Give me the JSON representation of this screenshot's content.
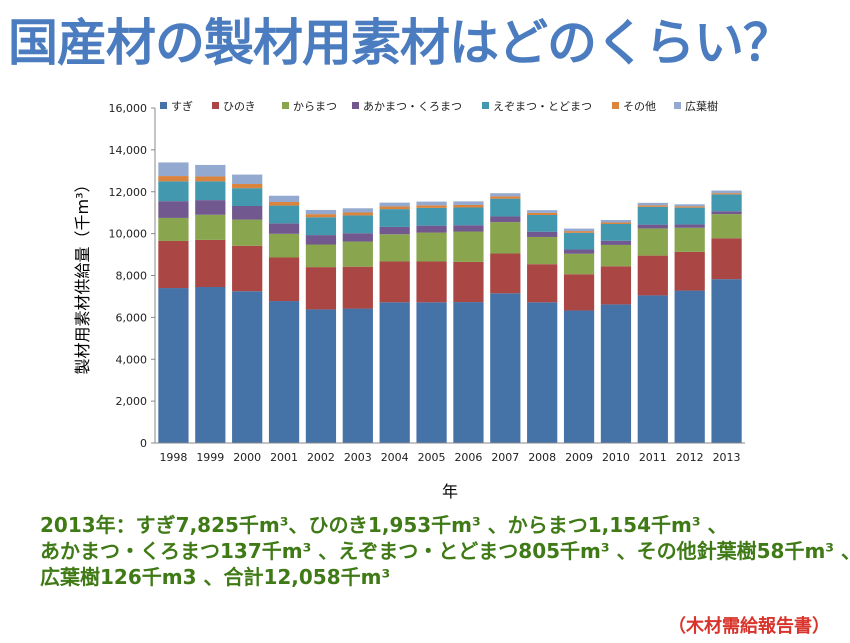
{
  "title": "国産材の製材用素材はどのくらい？",
  "colors": {
    "title": "#4a7cbf",
    "summary": "#3f7a16",
    "source": "#d9342b"
  },
  "chart_data": {
    "type": "bar",
    "stacked": true,
    "categories": [
      "1998",
      "1999",
      "2000",
      "2001",
      "2002",
      "2003",
      "2004",
      "2005",
      "2006",
      "2007",
      "2008",
      "2009",
      "2010",
      "2011",
      "2012",
      "2013"
    ],
    "ylabel": "製材用素材供給量（千m³）",
    "xlabel": "年",
    "ylim": [
      0,
      16000
    ],
    "yticks": [
      "0",
      "2,000",
      "4,000",
      "6,000",
      "8,000",
      "10,000",
      "12,000",
      "14,000",
      "16,000"
    ],
    "legend_position": "top",
    "series": [
      {
        "name": "すぎ",
        "color": "#4572a7",
        "values": [
          7400,
          7450,
          7250,
          6780,
          6380,
          6420,
          6720,
          6720,
          6730,
          7150,
          6720,
          6330,
          6620,
          7050,
          7280,
          7825
        ]
      },
      {
        "name": "ひのき",
        "color": "#aa4643",
        "values": [
          2250,
          2250,
          2170,
          2080,
          2020,
          2000,
          1950,
          1950,
          1920,
          1900,
          1820,
          1730,
          1820,
          1900,
          1850,
          1953
        ]
      },
      {
        "name": "からまつ",
        "color": "#89a54e",
        "values": [
          1100,
          1200,
          1250,
          1130,
          1080,
          1200,
          1300,
          1380,
          1450,
          1500,
          1300,
          980,
          1020,
          1300,
          1150,
          1154
        ]
      },
      {
        "name": "あかまつ・くろまつ",
        "color": "#71588f",
        "values": [
          800,
          700,
          650,
          500,
          450,
          400,
          350,
          330,
          300,
          270,
          250,
          200,
          200,
          180,
          160,
          137
        ]
      },
      {
        "name": "えぞまつ・とどまつ",
        "color": "#4198af",
        "values": [
          950,
          900,
          850,
          850,
          850,
          850,
          850,
          850,
          850,
          850,
          800,
          800,
          800,
          850,
          800,
          805
        ]
      },
      {
        "name": "その他",
        "color": "#db843d",
        "values": [
          250,
          230,
          200,
          170,
          150,
          140,
          130,
          120,
          120,
          110,
          100,
          80,
          70,
          70,
          60,
          58
        ]
      },
      {
        "name": "広葉樹",
        "color": "#93a9cf",
        "values": [
          650,
          550,
          450,
          300,
          200,
          200,
          180,
          180,
          170,
          150,
          130,
          120,
          120,
          120,
          100,
          126
        ]
      }
    ]
  },
  "summary": {
    "line1": "2013年：すぎ7,825千m³、ひのき1,953千m³ 、からまつ1,154千m³ 、",
    "line2": "あかまつ・くろまつ137千m³ 、えぞまつ・とどまつ805千m³ 、その他針葉樹58千m³ 、",
    "line3": "広葉樹126千m3 、合計12,058千m³"
  },
  "source": "（木材需給報告書）"
}
